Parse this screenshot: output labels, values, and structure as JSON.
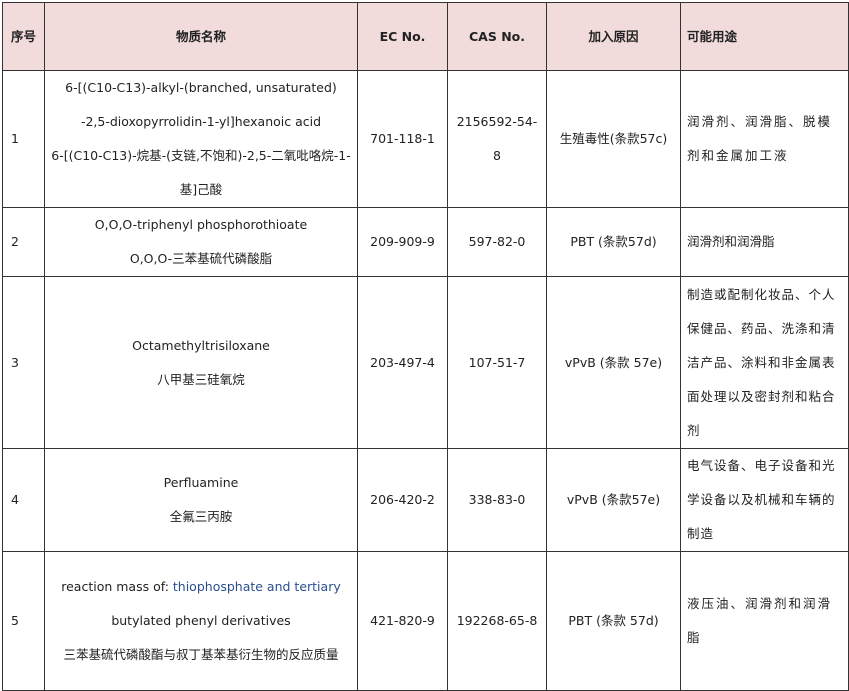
{
  "headers": {
    "index": "序号",
    "name": "物质名称",
    "ec": "EC No.",
    "cas": "CAS No.",
    "reason": "加入原因",
    "use": "可能用途"
  },
  "rows": [
    {
      "index": "1",
      "name_en_1": "6-[(C10-C13)-alkyl-(branched, unsaturated)",
      "name_en_2": "-2,5-dioxopyrrolidin-1-yl]hexanoic acid",
      "name_cn": "6-[(C10-C13)-烷基-(支链,不饱和)-2,5-二氧吡咯烷-1-基]己酸",
      "ec": "701-118-1",
      "cas": "2156592-54-8",
      "reason": "生殖毒性(条款57c)",
      "use": "润滑剂、润滑脂、脱模剂和金属加工液"
    },
    {
      "index": "2",
      "name_en_1": "O,O,O-triphenyl phosphorothioate",
      "name_cn": "O,O,O-三苯基硫代磷酸脂",
      "ec": "209-909-9",
      "cas": "597-82-0",
      "reason": "PBT (条款57d)",
      "use": "润滑剂和润滑脂"
    },
    {
      "index": "3",
      "name_en_1": "Octamethyltrisiloxane",
      "name_cn": "八甲基三硅氧烷",
      "ec": "203-497-4",
      "cas": "107-51-7",
      "reason": "vPvB (条款 57e)",
      "use": "制造或配制化妆品、个人保健品、药品、洗涤和清洁产品、涂料和非金属表面处理以及密封剂和粘合剂"
    },
    {
      "index": "4",
      "name_en_1": "Perfluamine",
      "name_cn": "全氟三丙胺",
      "ec": "206-420-2",
      "cas": "338-83-0",
      "reason": "vPvB (条款57e)",
      "use": "电气设备、电子设备和光学设备以及机械和车辆的制造"
    },
    {
      "index": "5",
      "name_en_1a": "reaction mass of: ",
      "name_en_1b": "thiophosphate and tertiary",
      "name_en_2": "butylated phenyl derivatives",
      "name_cn": "三苯基硫代磷酸酯与叔丁基苯基衍生物的反应质量",
      "ec": "421-820-9",
      "cas": "192268-65-8",
      "reason": "PBT (条款 57d)",
      "use": "液压油、润滑剂和润滑脂"
    }
  ]
}
